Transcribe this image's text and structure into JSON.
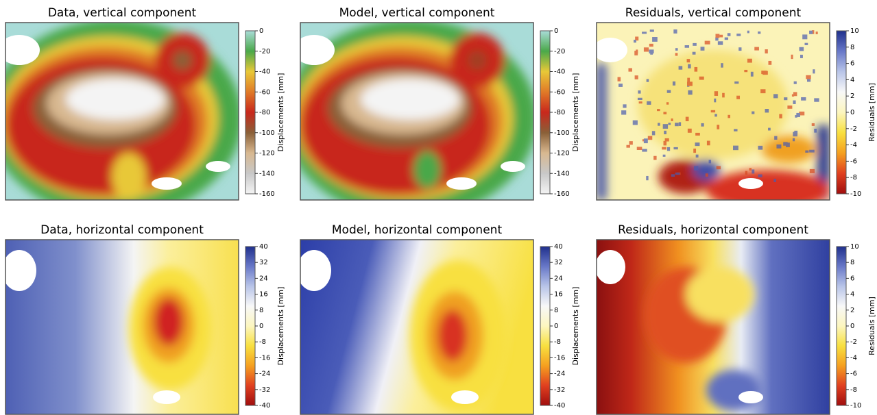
{
  "chart_data": [
    {
      "type": "heatmap",
      "title": "Data, vertical component",
      "colorbar_label": "Displacements [mm]",
      "ylim": [
        -160,
        0
      ],
      "yticks": [
        0,
        -20,
        -40,
        -60,
        -80,
        -100,
        -120,
        -140,
        -160
      ],
      "colormap": [
        "#f4f4f4",
        "#c8c8c8",
        "#d8b890",
        "#8a6038",
        "#c8281c",
        "#e07a28",
        "#e8c838",
        "#4aa84a",
        "#a9dcd8"
      ]
    },
    {
      "type": "heatmap",
      "title": "Model, vertical component",
      "colorbar_label": "Displacements [mm]",
      "ylim": [
        -160,
        0
      ],
      "yticks": [
        0,
        -20,
        -40,
        -60,
        -80,
        -100,
        -120,
        -140,
        -160
      ],
      "colormap": [
        "#f4f4f4",
        "#c8c8c8",
        "#d8b890",
        "#8a6038",
        "#c8281c",
        "#e07a28",
        "#e8c838",
        "#4aa84a",
        "#a9dcd8"
      ]
    },
    {
      "type": "heatmap",
      "title": "Residuals, vertical component",
      "colorbar_label": "Residuals [mm]",
      "ylim": [
        -10,
        10
      ],
      "yticks": [
        10,
        8,
        6,
        4,
        2,
        0,
        -2,
        -4,
        -6,
        -8,
        -10
      ],
      "colormap": [
        "#a00e0e",
        "#e04020",
        "#f5a020",
        "#f8e040",
        "#fcf6c0",
        "#f8f8f8",
        "#b8c4e8",
        "#6878c8",
        "#20308c"
      ]
    },
    {
      "type": "heatmap",
      "title": "Data, horizontal component",
      "colorbar_label": "Displacements [mm]",
      "ylim": [
        -40,
        40
      ],
      "yticks": [
        40,
        32,
        24,
        16,
        8,
        0,
        -8,
        -16,
        -24,
        -32,
        -40
      ],
      "colormap": [
        "#a00e0e",
        "#e04020",
        "#f5a020",
        "#f8e040",
        "#fcf6c0",
        "#f8f8f8",
        "#b8c4e8",
        "#6878c8",
        "#20308c"
      ]
    },
    {
      "type": "heatmap",
      "title": "Model, horizontal component",
      "colorbar_label": "Displacements [mm]",
      "ylim": [
        -40,
        40
      ],
      "yticks": [
        40,
        32,
        24,
        16,
        8,
        0,
        -8,
        -16,
        -24,
        -32,
        -40
      ],
      "colormap": [
        "#a00e0e",
        "#e04020",
        "#f5a020",
        "#f8e040",
        "#fcf6c0",
        "#f8f8f8",
        "#b8c4e8",
        "#6878c8",
        "#20308c"
      ]
    },
    {
      "type": "heatmap",
      "title": "Residuals, horizontal component",
      "colorbar_label": "Residuals [mm]",
      "ylim": [
        -10,
        10
      ],
      "yticks": [
        10,
        8,
        6,
        4,
        2,
        0,
        -2,
        -4,
        -6,
        -8,
        -10
      ],
      "colormap": [
        "#a00e0e",
        "#e04020",
        "#f5a020",
        "#f8e040",
        "#fcf6c0",
        "#f8f8f8",
        "#b8c4e8",
        "#6878c8",
        "#20308c"
      ]
    }
  ]
}
